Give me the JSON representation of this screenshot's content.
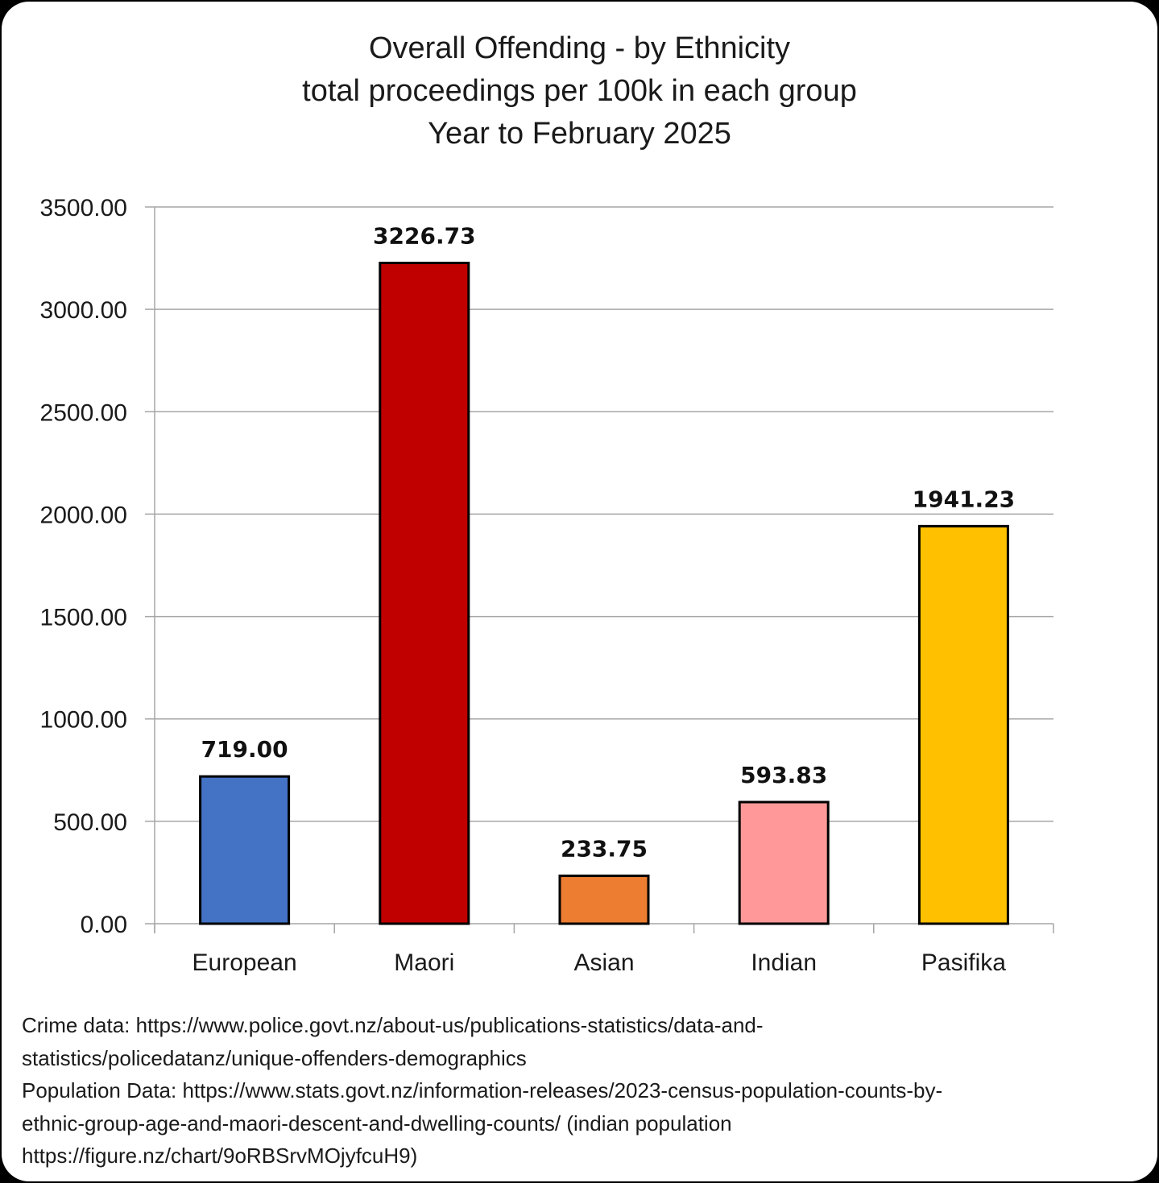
{
  "chart_data": {
    "type": "bar",
    "title": [
      "Overall Offending - by Ethnicity",
      "total proceedings per 100k in each group",
      "Year to February 2025"
    ],
    "categories": [
      "European",
      "Maori",
      "Asian",
      "Indian",
      "Pasifika"
    ],
    "values": [
      719.0,
      3226.73,
      233.75,
      593.83,
      1941.23
    ],
    "data_labels": [
      "719.00",
      "3226.73",
      "233.75",
      "593.83",
      "1941.23"
    ],
    "colors": [
      "#4472c4",
      "#c00000",
      "#ed7d31",
      "#ff9999",
      "#ffc000"
    ],
    "yticks": [
      "0.00",
      "500.00",
      "1000.00",
      "1500.00",
      "2000.00",
      "2500.00",
      "3000.00",
      "3500.00"
    ],
    "ylim": [
      0,
      3500
    ],
    "xlabel": "",
    "ylabel": "",
    "grid": true,
    "legend": "none"
  },
  "source_notes": [
    "Crime data: https://www.police.govt.nz/about-us/publications-statistics/data-and-",
    "statistics/policedatanz/unique-offenders-demographics",
    "Population Data: https://www.stats.govt.nz/information-releases/2023-census-population-counts-by-",
    "ethnic-group-age-and-maori-descent-and-dwelling-counts/ (indian population",
    "https://figure.nz/chart/9oRBSrvMOjyfcuH9)"
  ]
}
